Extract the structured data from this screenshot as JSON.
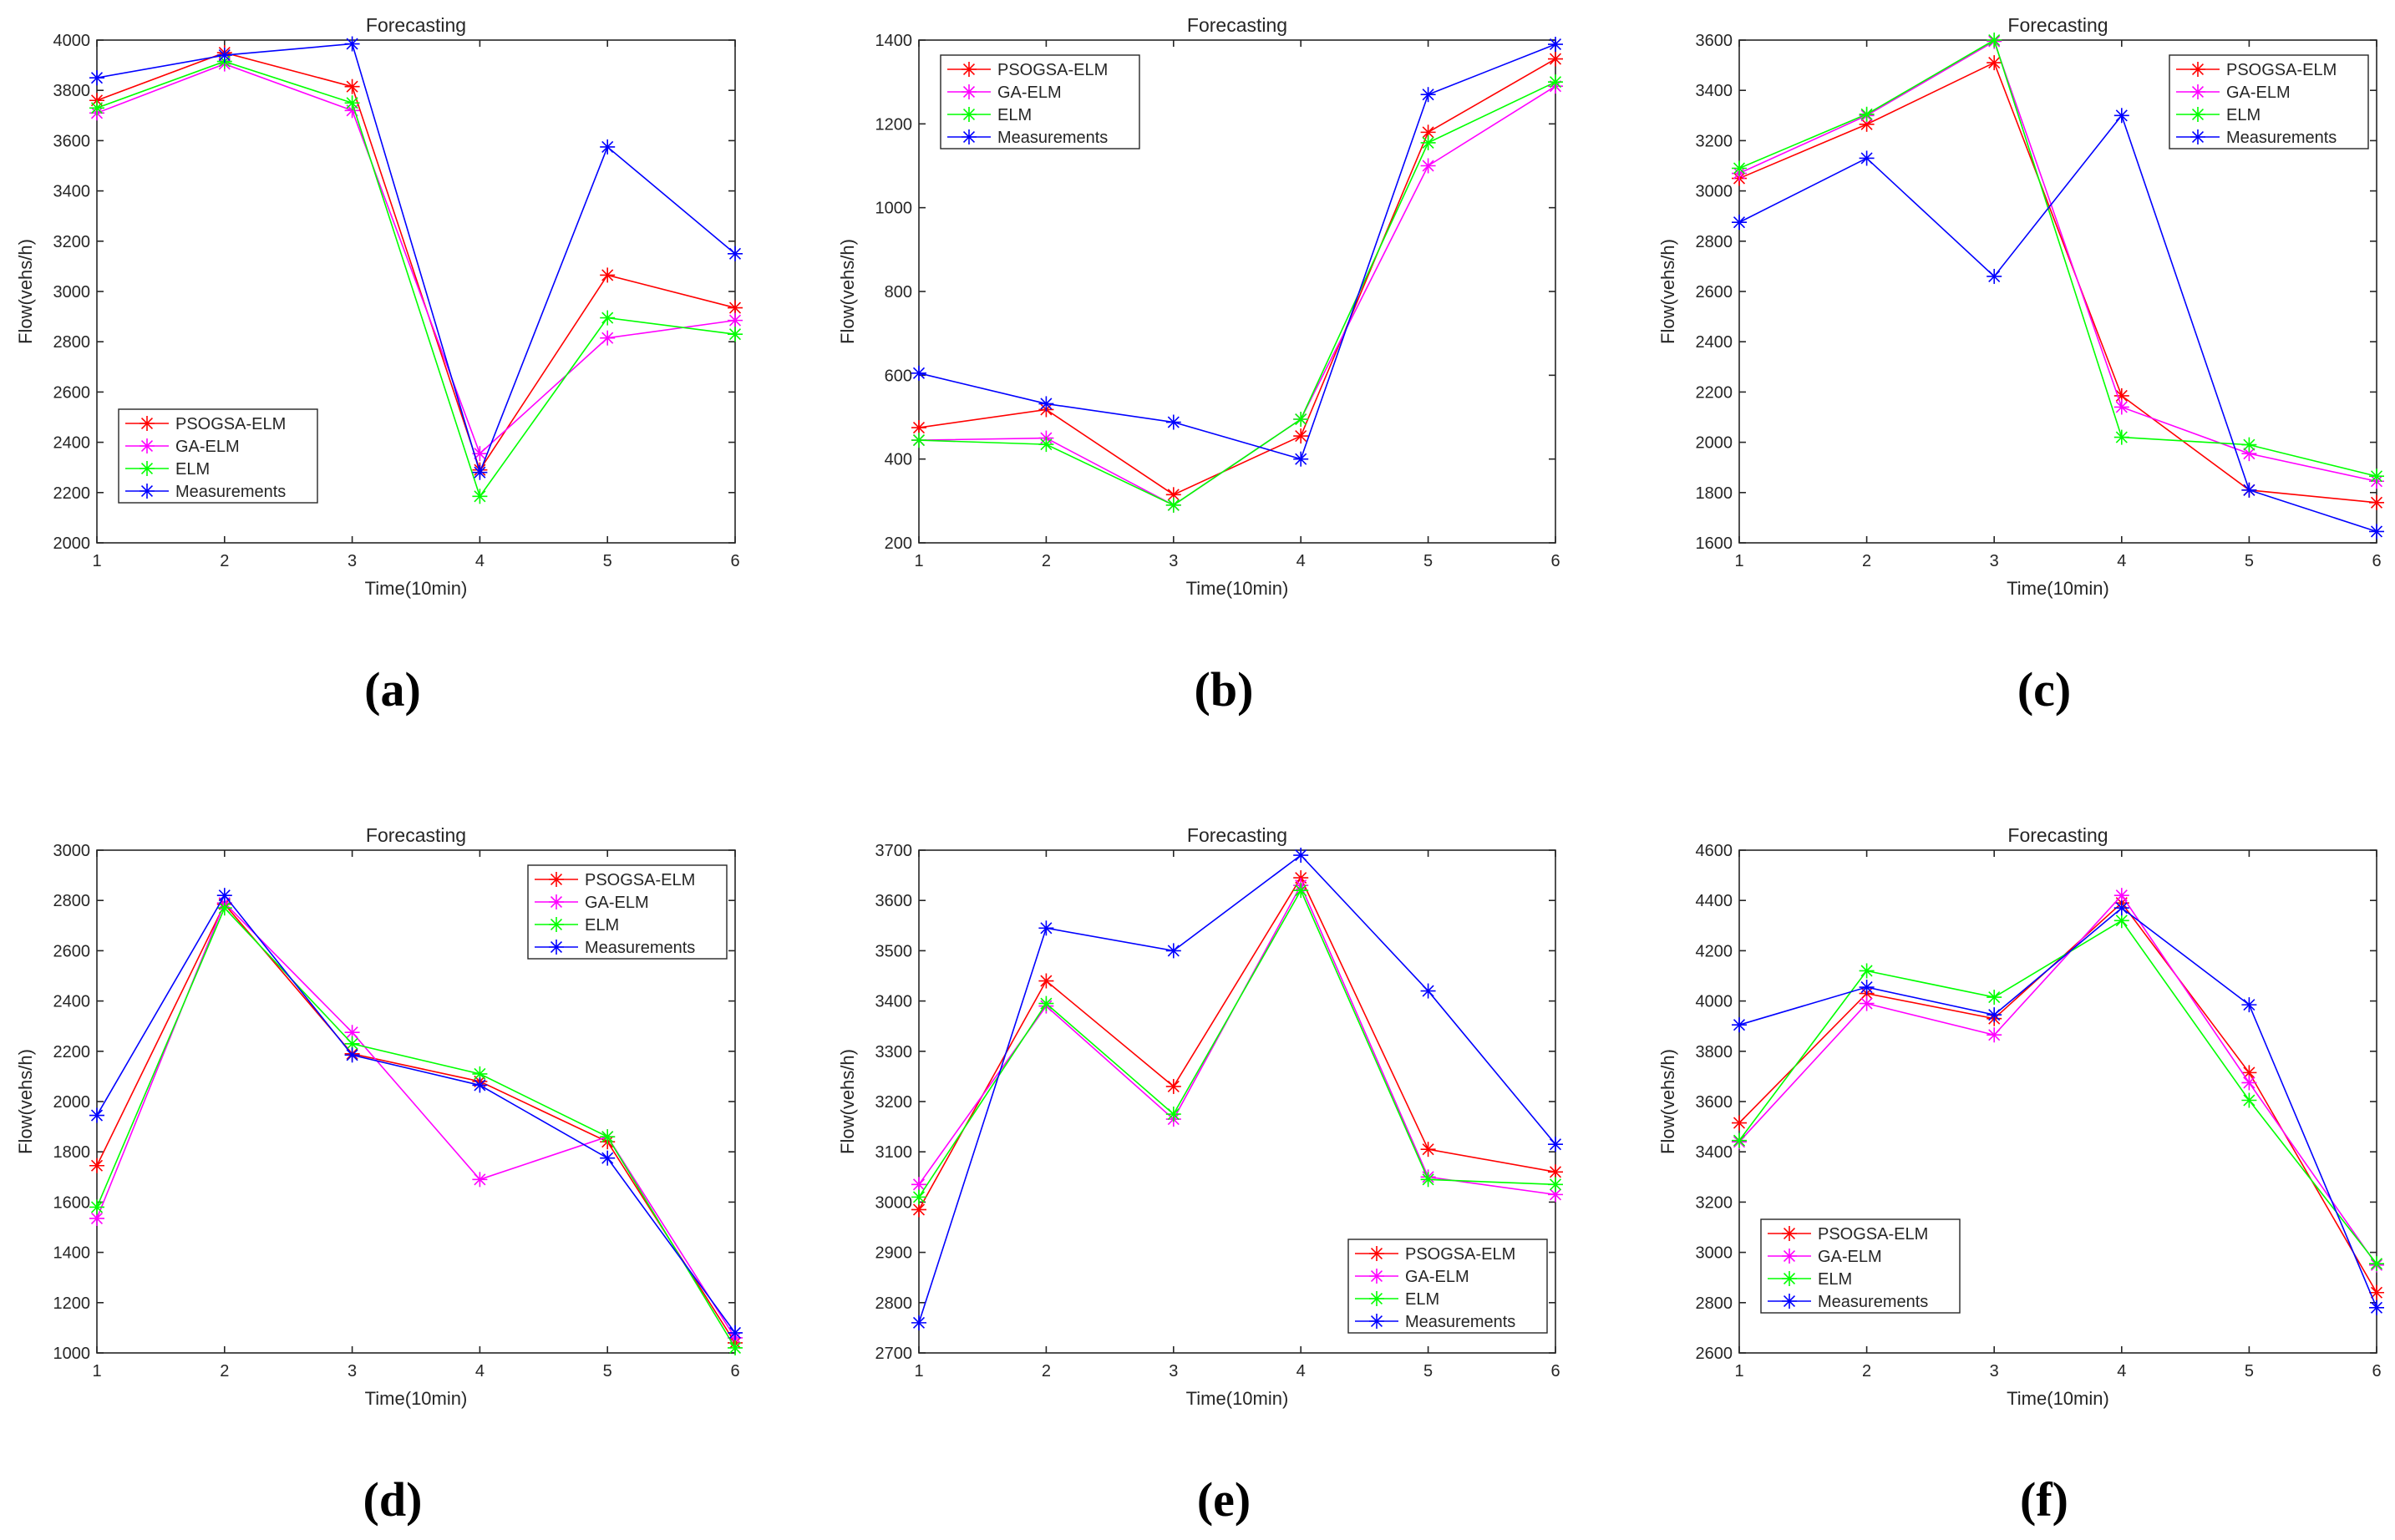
{
  "colors": {
    "PSOGSA-ELM": "#ff0000",
    "GA-ELM": "#ff00ff",
    "ELM": "#00ff00",
    "Measurements": "#0000ff"
  },
  "chart_data": [
    {
      "panel": "(a)",
      "type": "line",
      "title": "Forecasting",
      "xlabel": "Time(10min)",
      "ylabel": "Flow(vehs/h)",
      "x": [
        1,
        2,
        3,
        4,
        5,
        6
      ],
      "xticks": [
        "1",
        "2",
        "3",
        "4",
        "5",
        "6"
      ],
      "ylim": [
        2000,
        4000
      ],
      "yticks": [
        2000,
        2200,
        2400,
        2600,
        2800,
        3000,
        3200,
        3400,
        3600,
        3800,
        4000
      ],
      "legend_position": "bottom-left",
      "series": [
        {
          "name": "PSOGSA-ELM",
          "values": [
            3760,
            3950,
            3815,
            2290,
            3065,
            2935
          ]
        },
        {
          "name": "GA-ELM",
          "values": [
            3710,
            3905,
            3720,
            2355,
            2815,
            2885
          ]
        },
        {
          "name": "ELM",
          "values": [
            3730,
            3915,
            3750,
            2185,
            2895,
            2830
          ]
        },
        {
          "name": "Measurements",
          "values": [
            3850,
            3940,
            3985,
            2280,
            3575,
            3150
          ]
        }
      ]
    },
    {
      "panel": "(b)",
      "type": "line",
      "title": "Forecasting",
      "xlabel": "Time(10min)",
      "ylabel": "Flow(vehs/h)",
      "x": [
        1,
        2,
        3,
        4,
        5,
        6
      ],
      "xticks": [
        "1",
        "2",
        "3",
        "4",
        "5",
        "6"
      ],
      "ylim": [
        200,
        1400
      ],
      "yticks": [
        200,
        400,
        600,
        800,
        1000,
        1200,
        1400
      ],
      "legend_position": "top-left",
      "series": [
        {
          "name": "PSOGSA-ELM",
          "values": [
            475,
            518,
            315,
            455,
            1180,
            1355
          ]
        },
        {
          "name": "GA-ELM",
          "values": [
            445,
            450,
            290,
            495,
            1100,
            1290
          ]
        },
        {
          "name": "ELM",
          "values": [
            445,
            435,
            290,
            495,
            1155,
            1300
          ]
        },
        {
          "name": "Measurements",
          "values": [
            605,
            532,
            488,
            400,
            1270,
            1390
          ]
        }
      ]
    },
    {
      "panel": "(c)",
      "type": "line",
      "title": "Forecasting",
      "xlabel": "Time(10min)",
      "ylabel": "Flow(vehs/h)",
      "x": [
        1,
        2,
        3,
        4,
        5,
        6
      ],
      "xticks": [
        "1",
        "2",
        "3",
        "4",
        "5",
        "6"
      ],
      "ylim": [
        1600,
        3600
      ],
      "yticks": [
        1600,
        1800,
        2000,
        2200,
        2400,
        2600,
        2800,
        3000,
        3200,
        3400,
        3600
      ],
      "legend_position": "top-right",
      "series": [
        {
          "name": "PSOGSA-ELM",
          "values": [
            3050,
            3265,
            3510,
            2185,
            1810,
            1760
          ]
        },
        {
          "name": "GA-ELM",
          "values": [
            3070,
            3300,
            3595,
            2140,
            1955,
            1845
          ]
        },
        {
          "name": "ELM",
          "values": [
            3090,
            3305,
            3600,
            2020,
            1990,
            1865
          ]
        },
        {
          "name": "Measurements",
          "values": [
            2875,
            3130,
            2660,
            3300,
            1810,
            1645
          ]
        }
      ]
    },
    {
      "panel": "(d)",
      "type": "line",
      "title": "Forecasting",
      "xlabel": "Time(10min)",
      "ylabel": "Flow(vehs/h)",
      "x": [
        1,
        2,
        3,
        4,
        5,
        6
      ],
      "xticks": [
        "1",
        "2",
        "3",
        "4",
        "5",
        "6"
      ],
      "ylim": [
        1000,
        3000
      ],
      "yticks": [
        1000,
        1200,
        1400,
        1600,
        1800,
        2000,
        2200,
        2400,
        2600,
        2800,
        3000
      ],
      "legend_position": "top-right",
      "series": [
        {
          "name": "PSOGSA-ELM",
          "values": [
            1745,
            2785,
            2190,
            2080,
            1840,
            1040
          ]
        },
        {
          "name": "GA-ELM",
          "values": [
            1535,
            2790,
            2275,
            1690,
            1860,
            1060
          ]
        },
        {
          "name": "ELM",
          "values": [
            1580,
            2770,
            2230,
            2110,
            1860,
            1020
          ]
        },
        {
          "name": "Measurements",
          "values": [
            1945,
            2820,
            2185,
            2065,
            1775,
            1080
          ]
        }
      ]
    },
    {
      "panel": "(e)",
      "type": "line",
      "title": "Forecasting",
      "xlabel": "Time(10min)",
      "ylabel": "Flow(vehs/h)",
      "x": [
        1,
        2,
        3,
        4,
        5,
        6
      ],
      "xticks": [
        "1",
        "2",
        "3",
        "4",
        "5",
        "6"
      ],
      "ylim": [
        2700,
        3700
      ],
      "yticks": [
        2700,
        2800,
        2900,
        3000,
        3100,
        3200,
        3300,
        3400,
        3500,
        3600,
        3700
      ],
      "legend_position": "bottom-right",
      "series": [
        {
          "name": "PSOGSA-ELM",
          "values": [
            2985,
            3440,
            3230,
            3645,
            3105,
            3060
          ]
        },
        {
          "name": "GA-ELM",
          "values": [
            3035,
            3390,
            3165,
            3630,
            3050,
            3015
          ]
        },
        {
          "name": "ELM",
          "values": [
            3010,
            3395,
            3175,
            3620,
            3045,
            3035
          ]
        },
        {
          "name": "Measurements",
          "values": [
            2760,
            3545,
            3500,
            3690,
            3420,
            3115
          ]
        }
      ]
    },
    {
      "panel": "(f)",
      "type": "line",
      "title": "Forecasting",
      "xlabel": "Time(10min)",
      "ylabel": "Flow(vehs/h)",
      "x": [
        1,
        2,
        3,
        4,
        5,
        6
      ],
      "xticks": [
        "1",
        "2",
        "3",
        "4",
        "5",
        "6"
      ],
      "ylim": [
        2600,
        4600
      ],
      "yticks": [
        2600,
        2800,
        3000,
        3200,
        3400,
        3600,
        3800,
        4000,
        4200,
        4400,
        4600
      ],
      "legend_position": "bottom-left",
      "series": [
        {
          "name": "PSOGSA-ELM",
          "values": [
            3515,
            4030,
            3930,
            4390,
            3715,
            2840
          ]
        },
        {
          "name": "GA-ELM",
          "values": [
            3440,
            3990,
            3865,
            4420,
            3675,
            2950
          ]
        },
        {
          "name": "ELM",
          "values": [
            3445,
            4120,
            4015,
            4320,
            3605,
            2955
          ]
        },
        {
          "name": "Measurements",
          "values": [
            3905,
            4055,
            3945,
            4370,
            3985,
            2780
          ]
        }
      ]
    }
  ]
}
